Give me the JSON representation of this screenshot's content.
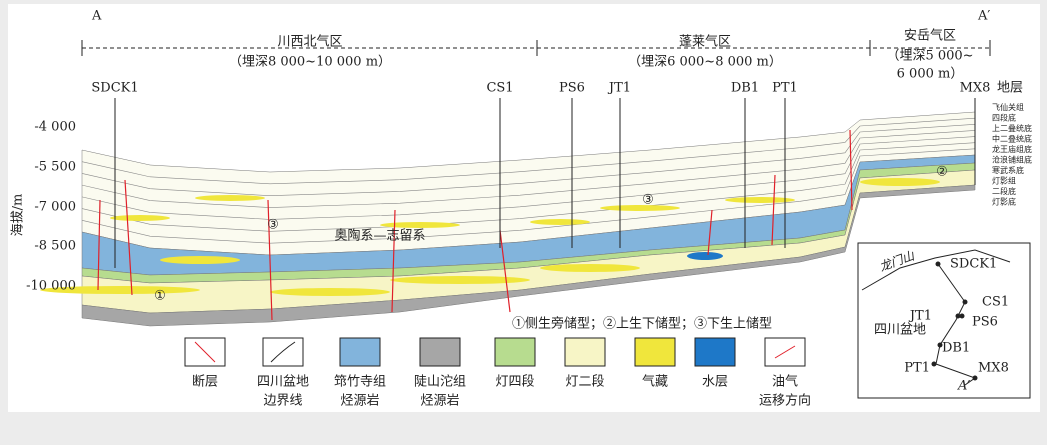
{
  "endpoints": {
    "left": "A",
    "right": "A′"
  },
  "regions": [
    {
      "name": "川西北气区",
      "depth_lines": [
        "（埋深8 000~10 000 m）"
      ]
    },
    {
      "name": "蓬莱气区",
      "depth_lines": [
        "（埋深6 000~8 000 m）"
      ]
    },
    {
      "name": "安岳气区",
      "depth_lines": [
        "（埋深5 000~",
        "6 000 m）"
      ]
    }
  ],
  "wells": [
    "SDCK1",
    "CS1",
    "PS6",
    "JT1",
    "DB1",
    "PT1",
    "MX8"
  ],
  "strata_header": "地层",
  "y_axis": {
    "label": "海拔/m",
    "ticks": [
      "-4 000",
      "-5 500",
      "-7 000",
      "-8 500",
      "-10 000"
    ]
  },
  "strata": [
    "飞仙关组",
    "四段底",
    "上二叠统底",
    "中二叠统底",
    "龙王庙组底",
    "沧浪铺组底",
    "寒武系底",
    "灯影组",
    "二段底",
    "灯影底"
  ],
  "annotations": {
    "formation": "奥陶系—志留系",
    "marks": [
      "③",
      "①",
      "③",
      "②"
    ]
  },
  "caption": "①侧生旁储型；②上生下储型；③下生上储型",
  "legend": [
    {
      "lines": [
        "断层"
      ]
    },
    {
      "lines": [
        "四川盆地",
        "边界线"
      ]
    },
    {
      "lines": [
        "筇竹寺组",
        "烃源岩"
      ]
    },
    {
      "lines": [
        "陡山沱组",
        "烃源岩"
      ]
    },
    {
      "lines": [
        "灯四段"
      ]
    },
    {
      "lines": [
        "灯二段"
      ]
    },
    {
      "lines": [
        "气藏"
      ]
    },
    {
      "lines": [
        "水层"
      ]
    },
    {
      "lines": [
        "油气",
        "运移方向"
      ]
    }
  ],
  "inset": {
    "mountain": "龙门山",
    "basin": "四川盆地",
    "wells": [
      "SDCK1",
      "JT1",
      "CS1",
      "PS6",
      "DB1",
      "PT1",
      "MX8"
    ],
    "end": "A′"
  }
}
